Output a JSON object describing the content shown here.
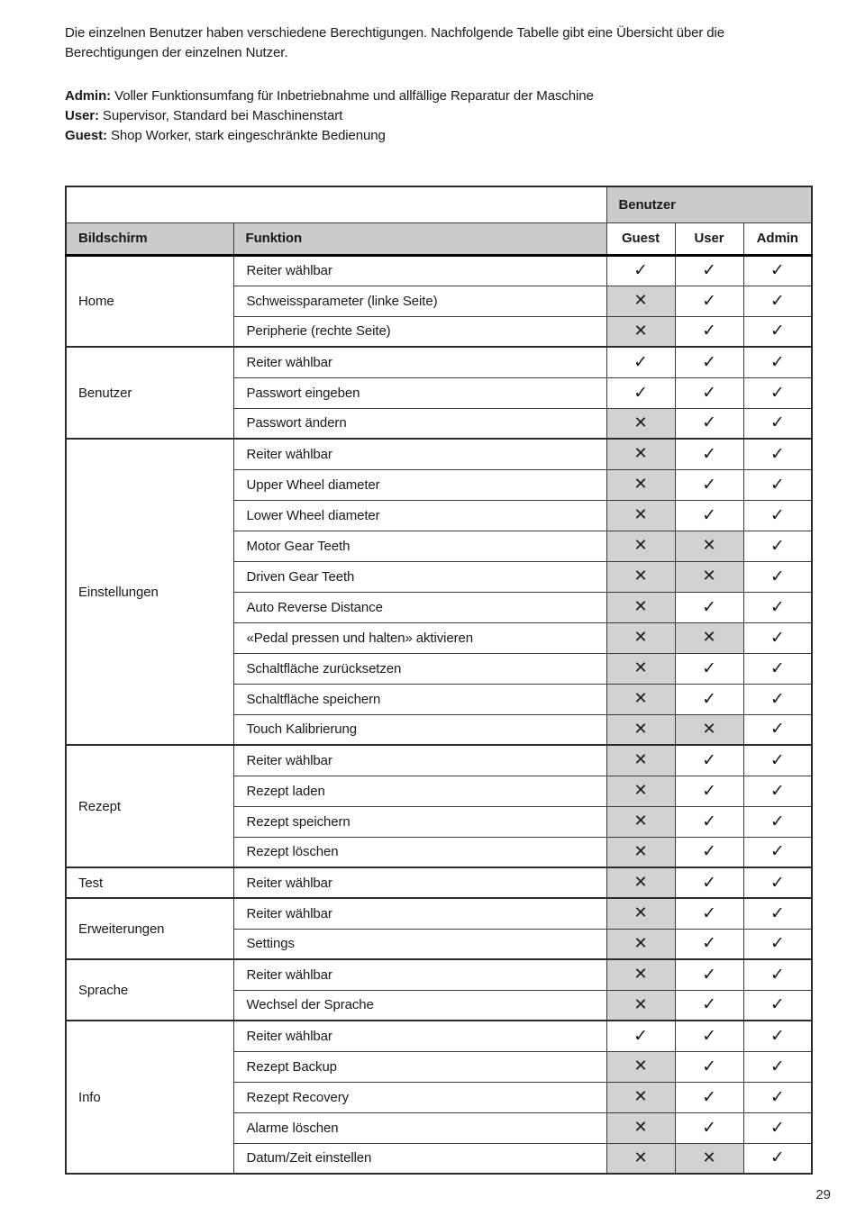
{
  "page": {
    "intro": "Die einzelnen Benutzer haben verschiedene Berechtigungen. Nachfolgende Tabelle gibt eine Übersicht über die Berechtigungen der einzelnen Nutzer.",
    "roles": [
      {
        "name": "Admin:",
        "desc": " Voller Funktionsumfang für Inbetriebnahme und allfällige Reparatur der Maschine"
      },
      {
        "name": "User:",
        "desc": " Supervisor, Standard bei Maschinenstart"
      },
      {
        "name": "Guest:",
        "desc": " Shop Worker, stark eingeschränkte Bedienung"
      }
    ],
    "page_number": "29"
  },
  "table": {
    "header": {
      "benutzer_label": "Benutzer",
      "col_bildschirm": "Bildschirm",
      "col_funktion": "Funktion",
      "user_columns": [
        "Guest",
        "User",
        "Admin"
      ]
    },
    "marks": {
      "allowed": "✓",
      "denied": "✕"
    },
    "groups": [
      {
        "screen": "Home",
        "rows": [
          {
            "funktion": "Reiter wählbar",
            "guest": true,
            "user": true,
            "admin": true
          },
          {
            "funktion": "Schweissparameter (linke Seite)",
            "guest": false,
            "user": true,
            "admin": true
          },
          {
            "funktion": "Peripherie (rechte Seite)",
            "guest": false,
            "user": true,
            "admin": true
          }
        ]
      },
      {
        "screen": "Benutzer",
        "rows": [
          {
            "funktion": "Reiter wählbar",
            "guest": true,
            "user": true,
            "admin": true
          },
          {
            "funktion": "Passwort eingeben",
            "guest": true,
            "user": true,
            "admin": true
          },
          {
            "funktion": "Passwort ändern",
            "guest": false,
            "user": true,
            "admin": true
          }
        ]
      },
      {
        "screen": "Einstellungen",
        "rows": [
          {
            "funktion": "Reiter wählbar",
            "guest": false,
            "user": true,
            "admin": true
          },
          {
            "funktion": "Upper Wheel diameter",
            "guest": false,
            "user": true,
            "admin": true
          },
          {
            "funktion": "Lower Wheel diameter",
            "guest": false,
            "user": true,
            "admin": true
          },
          {
            "funktion": "Motor Gear Teeth",
            "guest": false,
            "user": false,
            "admin": true
          },
          {
            "funktion": "Driven Gear Teeth",
            "guest": false,
            "user": false,
            "admin": true
          },
          {
            "funktion": "Auto Reverse Distance",
            "guest": false,
            "user": true,
            "admin": true
          },
          {
            "funktion": "«Pedal pressen und halten» aktivieren",
            "guest": false,
            "user": false,
            "admin": true
          },
          {
            "funktion": "Schaltfläche zurücksetzen",
            "guest": false,
            "user": true,
            "admin": true
          },
          {
            "funktion": "Schaltfläche speichern",
            "guest": false,
            "user": true,
            "admin": true
          },
          {
            "funktion": "Touch Kalibrierung",
            "guest": false,
            "user": false,
            "admin": true
          }
        ]
      },
      {
        "screen": "Rezept",
        "rows": [
          {
            "funktion": "Reiter wählbar",
            "guest": false,
            "user": true,
            "admin": true
          },
          {
            "funktion": "Rezept laden",
            "guest": false,
            "user": true,
            "admin": true
          },
          {
            "funktion": "Rezept speichern",
            "guest": false,
            "user": true,
            "admin": true
          },
          {
            "funktion": "Rezept löschen",
            "guest": false,
            "user": true,
            "admin": true
          }
        ]
      },
      {
        "screen": "Test",
        "rows": [
          {
            "funktion": "Reiter wählbar",
            "guest": false,
            "user": true,
            "admin": true
          }
        ]
      },
      {
        "screen": "Erweiterungen",
        "rows": [
          {
            "funktion": "Reiter wählbar",
            "guest": false,
            "user": true,
            "admin": true
          },
          {
            "funktion": "Settings",
            "guest": false,
            "user": true,
            "admin": true
          }
        ]
      },
      {
        "screen": "Sprache",
        "rows": [
          {
            "funktion": "Reiter wählbar",
            "guest": false,
            "user": true,
            "admin": true
          },
          {
            "funktion": "Wechsel der Sprache",
            "guest": false,
            "user": true,
            "admin": true
          }
        ]
      },
      {
        "screen": "Info",
        "rows": [
          {
            "funktion": "Reiter wählbar",
            "guest": true,
            "user": true,
            "admin": true
          },
          {
            "funktion": "Rezept Backup",
            "guest": false,
            "user": true,
            "admin": true
          },
          {
            "funktion": "Rezept Recovery",
            "guest": false,
            "user": true,
            "admin": true
          },
          {
            "funktion": "Alarme löschen",
            "guest": false,
            "user": true,
            "admin": true
          },
          {
            "funktion": "Datum/Zeit einstellen",
            "guest": false,
            "user": false,
            "admin": true
          }
        ]
      }
    ]
  }
}
